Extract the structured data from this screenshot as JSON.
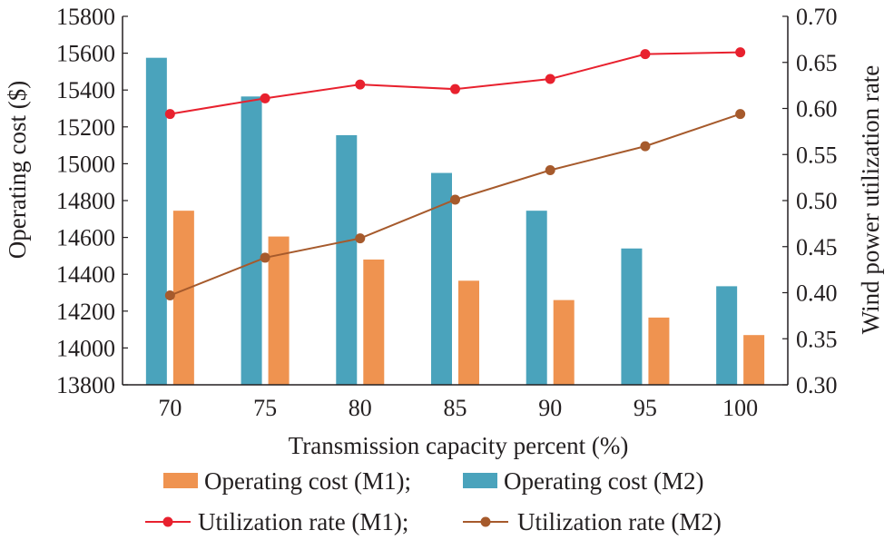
{
  "chart_data": {
    "type": "bar+line",
    "categories": [
      "70",
      "75",
      "80",
      "85",
      "90",
      "95",
      "100"
    ],
    "xlabel": "Transmission capacity percent (%)",
    "ylabel_left": "Operating cost ($)",
    "ylabel_right": "Wind power utilization rate",
    "ylim_left": [
      13800,
      15800
    ],
    "ylim_right": [
      0.3,
      0.7
    ],
    "yticks_left": [
      "13800",
      "14000",
      "14200",
      "14400",
      "14600",
      "14800",
      "15000",
      "15200",
      "15400",
      "15600",
      "15800"
    ],
    "yticks_right": [
      "0.30",
      "0.35",
      "0.40",
      "0.45",
      "0.50",
      "0.55",
      "0.60",
      "0.65",
      "0.70"
    ],
    "grid": false,
    "legend_position": "bottom",
    "bar_series": [
      {
        "name": "Operating cost (M2)",
        "color": "#4aa3bc",
        "values": [
          15575,
          15365,
          15155,
          14950,
          14745,
          14540,
          14335
        ]
      },
      {
        "name": "Operating cost (M1)",
        "color": "#ef9350",
        "values": [
          14745,
          14605,
          14480,
          14365,
          14260,
          14165,
          14070
        ]
      }
    ],
    "line_series": [
      {
        "name": "Utilization rate (M1)",
        "color": "#e8212e",
        "values": [
          0.594,
          0.611,
          0.626,
          0.621,
          0.632,
          0.659,
          0.661
        ]
      },
      {
        "name": "Utilization rate (M2)",
        "color": "#a65a2c",
        "values": [
          0.397,
          0.438,
          0.459,
          0.501,
          0.533,
          0.559,
          0.594
        ]
      }
    ]
  },
  "legend": {
    "row1": [
      {
        "label": "Operating cost (M1);",
        "color": "#ef9350",
        "kind": "bar"
      },
      {
        "label": "Operating cost (M2)",
        "color": "#4aa3bc",
        "kind": "bar"
      }
    ],
    "row2": [
      {
        "label": "Utilization rate (M1);",
        "color": "#e8212e",
        "kind": "line"
      },
      {
        "label": "Utilization rate (M2)",
        "color": "#a65a2c",
        "kind": "line"
      }
    ]
  }
}
